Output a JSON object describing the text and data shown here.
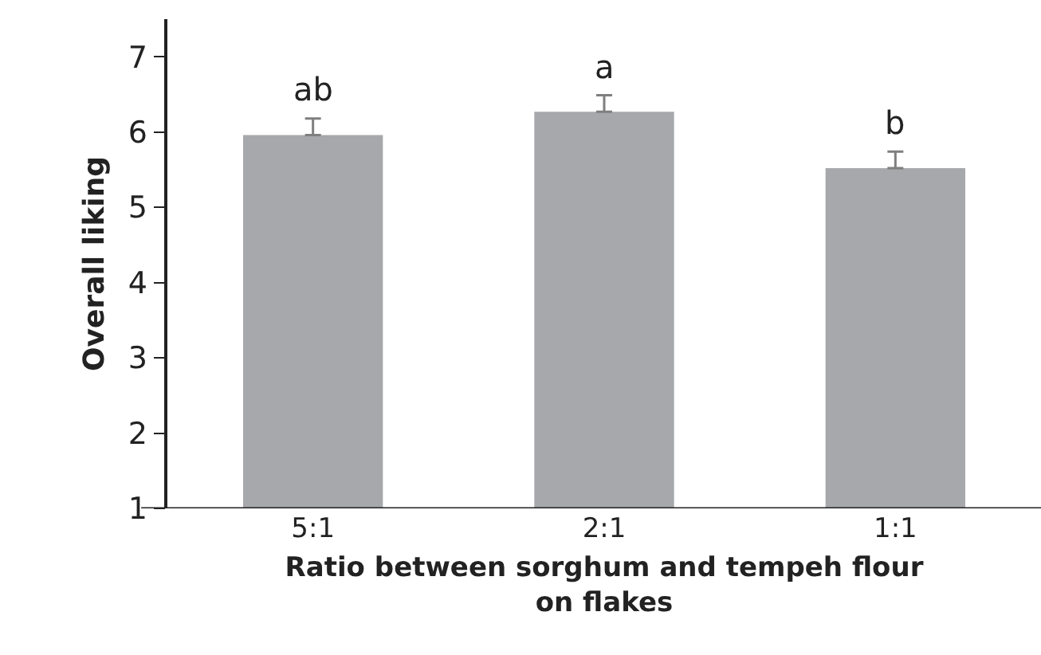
{
  "chart_data": {
    "type": "bar",
    "xlabel": "Ratio between sorghum and tempeh flour on flakes",
    "ylabel": "Overall liking",
    "categories": [
      "5:1",
      "2:1",
      "1:1"
    ],
    "values": [
      5.96,
      6.27,
      5.52
    ],
    "errors": [
      [
        5.96,
        6.18
      ],
      [
        6.27,
        6.49
      ],
      [
        5.52,
        5.74
      ]
    ],
    "color": "#a7a8ab",
    "ylim": [
      1,
      7.5
    ],
    "yticks": [
      1,
      2,
      3,
      4,
      5,
      6,
      7
    ],
    "grid": false,
    "legend": false,
    "annotations": [
      {
        "text": "ab",
        "x": "5:1",
        "y": 6.18
      },
      {
        "text": "a",
        "x": "2:1",
        "y": 6.49
      },
      {
        "text": "b",
        "x": "1:1",
        "y": 5.74
      }
    ]
  }
}
